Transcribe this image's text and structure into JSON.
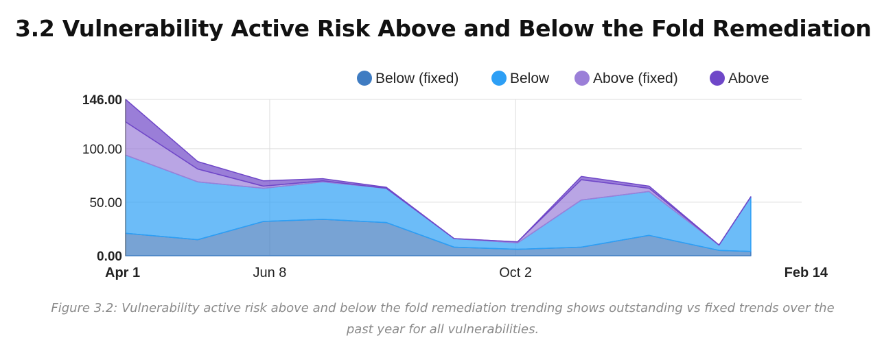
{
  "chart_data": {
    "type": "area",
    "stacked": true,
    "title": "3.2 Vulnerability Active Risk Above and Below the Fold Remediation",
    "caption": "Figure 3.2: Vulnerability active risk above and below the fold remediation trending shows outstanding vs fixed trends over the past year for all vulnerabilities.",
    "xlabel": "",
    "ylabel": "",
    "x": [
      0,
      34,
      65,
      93,
      123,
      155,
      185,
      215,
      247,
      280,
      295
    ],
    "x_ticks": [
      {
        "pos": 0,
        "label": "Apr 1",
        "bold": true
      },
      {
        "pos": 68,
        "label": "Jun 8",
        "bold": false
      },
      {
        "pos": 184,
        "label": "Oct 2",
        "bold": false
      },
      {
        "pos": 319,
        "label": "Feb 14",
        "bold": true
      }
    ],
    "xlim": [
      0,
      319
    ],
    "ylim": [
      0,
      146
    ],
    "y_ticks": [
      {
        "value": 0,
        "label": "0.00",
        "bold": true
      },
      {
        "value": 50,
        "label": "50.00",
        "bold": false
      },
      {
        "value": 100,
        "label": "100.00",
        "bold": false
      },
      {
        "value": 146,
        "label": "146.00",
        "bold": true
      }
    ],
    "grid": true,
    "legend_position": "top-right",
    "series": [
      {
        "name": "Below (fixed)",
        "color": "#3f7cc2",
        "values": [
          21,
          15,
          32,
          34,
          31,
          8,
          6,
          8,
          19,
          5,
          4
        ]
      },
      {
        "name": "Below",
        "color": "#2d9ff5",
        "values": [
          73,
          54,
          31,
          35,
          32,
          8,
          6,
          44,
          41,
          5,
          51
        ]
      },
      {
        "name": "Above (fixed)",
        "color": "#9b7fd8",
        "values": [
          31,
          12,
          2,
          1,
          0,
          0,
          1,
          19,
          3,
          0,
          0
        ]
      },
      {
        "name": "Above",
        "color": "#6f47c8",
        "values": [
          21,
          7,
          5,
          2,
          1,
          0,
          0,
          3,
          2,
          0,
          0
        ]
      }
    ]
  }
}
